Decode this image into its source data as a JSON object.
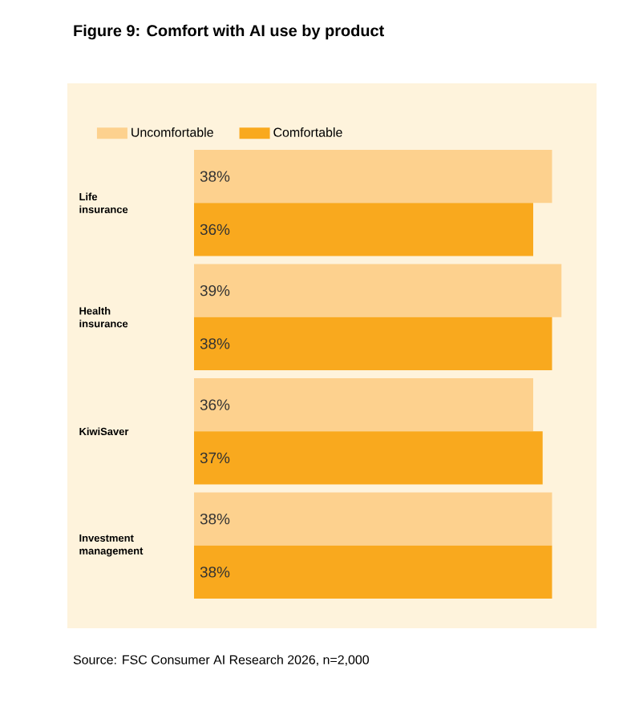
{
  "chart_data": {
    "type": "bar",
    "orientation": "horizontal",
    "title": "Figure 9: Comfort with AI use by product",
    "categories": [
      "Life insurance",
      "Health insurance",
      "KiwiSaver",
      "Investment management"
    ],
    "series": [
      {
        "name": "Uncomfortable",
        "color": "#fdd18e",
        "values": [
          38,
          39,
          36,
          38
        ],
        "value_labels": [
          "38%",
          "39%",
          "36%",
          "38%"
        ]
      },
      {
        "name": "Comfortable",
        "color": "#f9a91e",
        "values": [
          36,
          38,
          37,
          38
        ],
        "value_labels": [
          "36%",
          "38%",
          "37%",
          "38%"
        ]
      }
    ],
    "legend": "top left",
    "tick_labels": "y",
    "annotations": [
      "Source: FSC Consumer AI Research 2026, n=2,000"
    ]
  }
}
